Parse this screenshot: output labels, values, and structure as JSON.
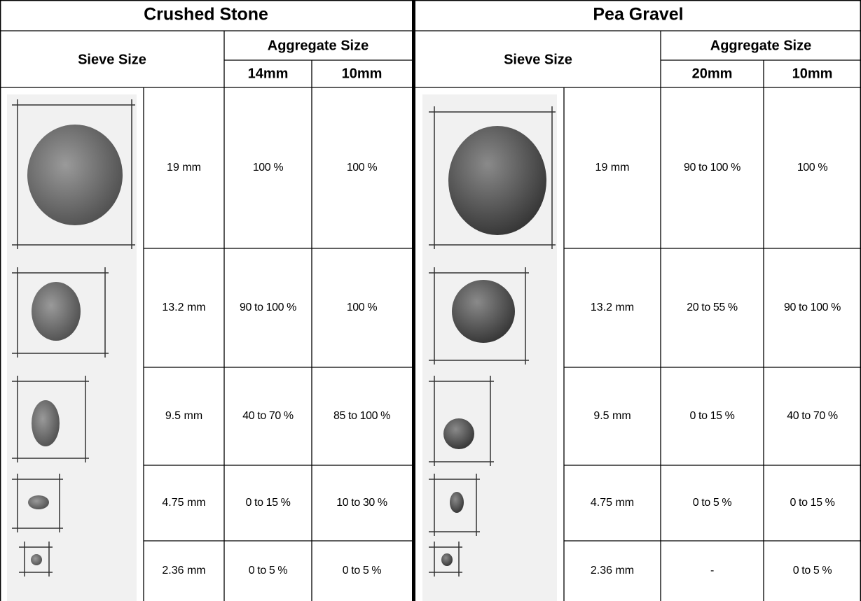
{
  "tables": [
    {
      "title": "Crushed Stone",
      "sieve_header": "Sieve Size",
      "aggregate_header": "Aggregate Size",
      "sizes": [
        "14mm",
        "10mm"
      ],
      "rows": [
        [
          "19 mm",
          "100 %",
          "100 %"
        ],
        [
          "13.2 mm",
          "90 to 100 %",
          "100 %"
        ],
        [
          "9.5 mm",
          "40 to 70 %",
          "85 to 100 %"
        ],
        [
          "4.75 mm",
          "0 to 15 %",
          "10 to 30 %"
        ],
        [
          "2.36 mm",
          "0 to 5 %",
          "0 to 5 %"
        ]
      ]
    },
    {
      "title": "Pea Gravel",
      "sieve_header": "Sieve Size",
      "aggregate_header": "Aggregate Size",
      "sizes": [
        "20mm",
        "10mm"
      ],
      "rows": [
        [
          "19 mm",
          "90 to 100 %",
          "100 %"
        ],
        [
          "13.2 mm",
          "20 to 55 %",
          "90 to 100 %"
        ],
        [
          "9.5 mm",
          "0 to 15 %",
          "40 to 70 %"
        ],
        [
          "4.75 mm",
          "0 to 5 %",
          "0 to 15 %"
        ],
        [
          "2.36 mm",
          "-",
          "0 to 5 %"
        ]
      ]
    }
  ]
}
